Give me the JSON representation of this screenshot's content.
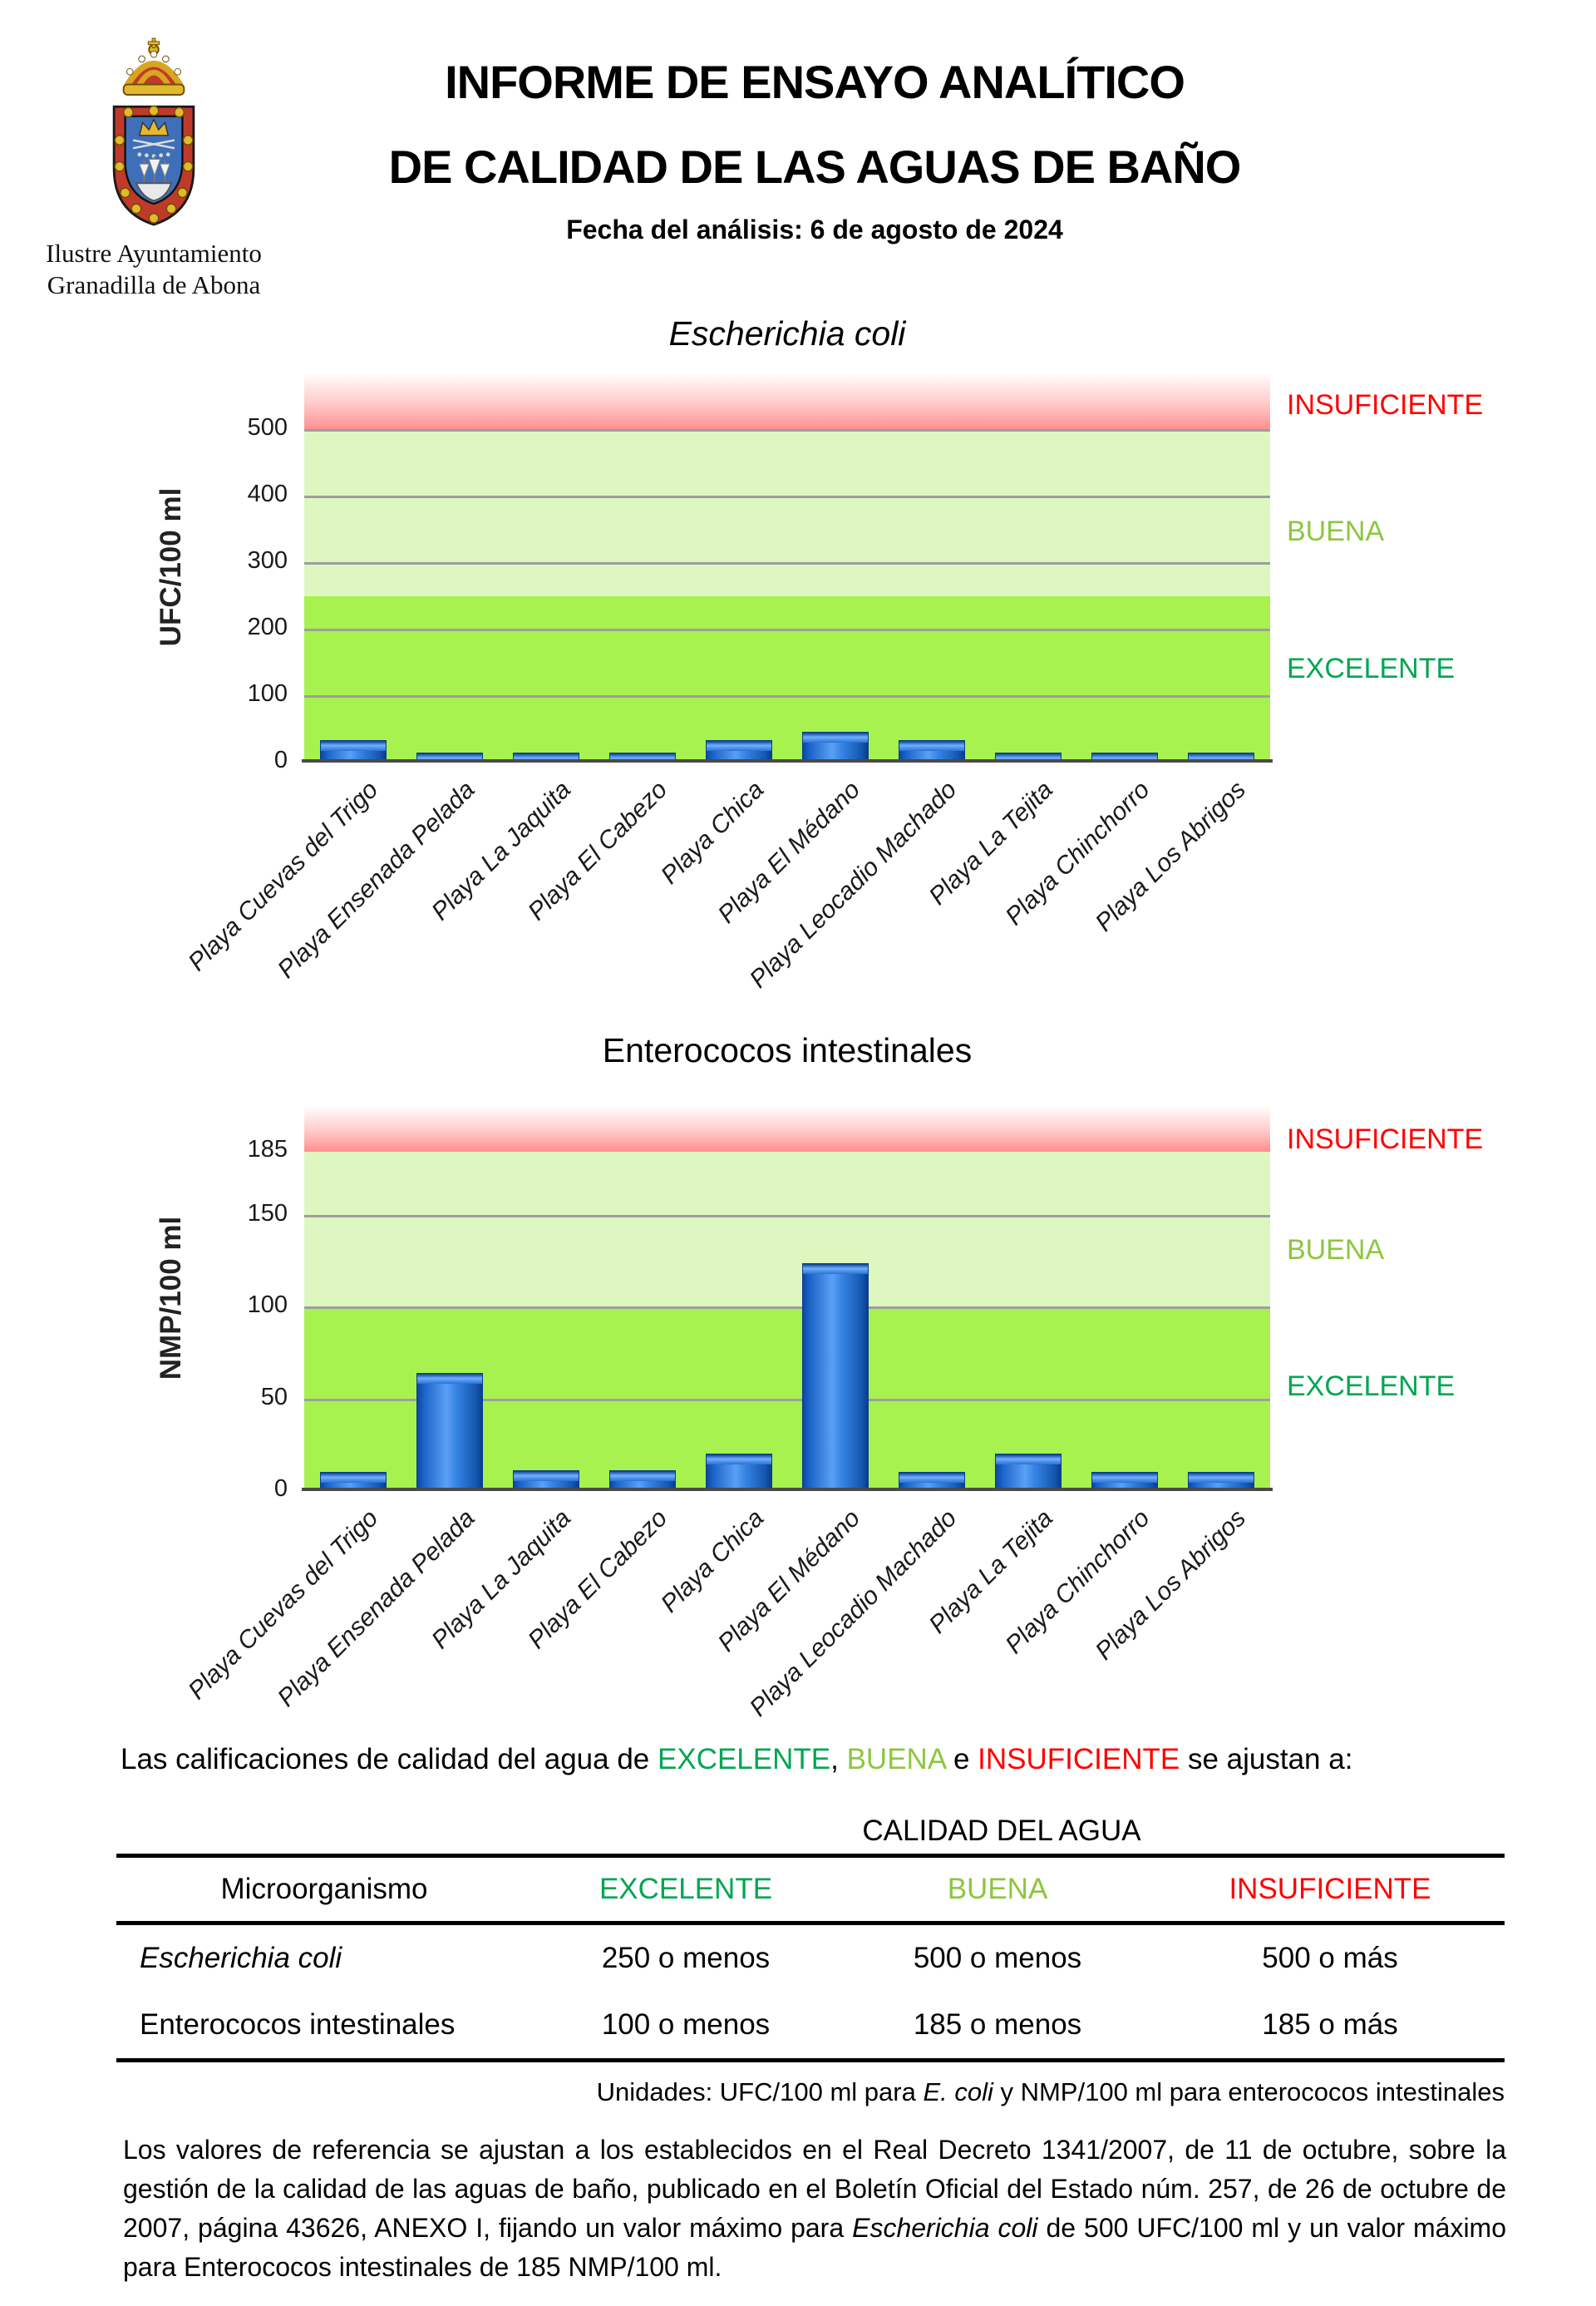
{
  "header": {
    "org_line1": "Ilustre Ayuntamiento",
    "org_line2": "Granadilla de Abona",
    "title_line1": "INFORME DE ENSAYO ANALÍTICO",
    "title_line2": "DE CALIDAD DE LAS AGUAS DE BAÑO",
    "subtitle": "Fecha del análisis: 6 de agosto de 2024"
  },
  "quality_labels": {
    "insuficiente": "INSUFICIENTE",
    "buena": "BUENA",
    "excelente": "EXCELENTE"
  },
  "colors": {
    "excelente_text": "#00A651",
    "buena_text": "#8DC63F",
    "insuficiente_text": "#FF0000",
    "zone_excelente_bg": "#A7F24E",
    "zone_buena_bg": "#DEF7C0",
    "zone_insuficiente_top": "#FF8E8E",
    "bar_fill": "#2E7CE0",
    "gridline": "#9E9E9E"
  },
  "chart_data": [
    {
      "type": "bar",
      "title": "Escherichia coli",
      "title_italic": true,
      "ylabel": "UFC/100 ml",
      "xlabel": "",
      "categories": [
        "Playa Cuevas del Trigo",
        "Playa Ensenada Pelada",
        "Playa La Jaquita",
        "Playa El Cabezo",
        "Playa Chica",
        "Playa El Médano",
        "Playa Leocadio Machado",
        "Playa La Tejita",
        "Playa Chinchorro",
        "Playa Los Abrigos"
      ],
      "values": [
        28,
        9,
        9,
        9,
        28,
        40,
        28,
        9,
        9,
        9
      ],
      "yticks": [
        0,
        100,
        200,
        300,
        400,
        500
      ],
      "ylim": [
        0,
        585
      ],
      "grid": true,
      "zones": {
        "excelente_max": 250,
        "buena_max": 500
      },
      "zone_labels": [
        "INSUFICIENTE",
        "BUENA",
        "EXCELENTE"
      ]
    },
    {
      "type": "bar",
      "title": "Enterococos intestinales",
      "title_italic": false,
      "ylabel": "NMP/100 ml",
      "xlabel": "",
      "categories": [
        "Playa Cuevas del Trigo",
        "Playa Ensenada Pelada",
        "Playa La Jaquita",
        "Playa El Cabezo",
        "Playa Chica",
        "Playa El Médano",
        "Playa Leocadio Machado",
        "Playa La Tejita",
        "Playa Chinchorro",
        "Playa Los Abrigos"
      ],
      "values": [
        8,
        62,
        9,
        9,
        18,
        122,
        8,
        18,
        8,
        8
      ],
      "yticks": [
        0,
        50,
        100,
        150,
        185
      ],
      "ylim": [
        0,
        210
      ],
      "grid": true,
      "zones": {
        "excelente_max": 100,
        "buena_max": 185
      },
      "zone_labels": [
        "INSUFICIENTE",
        "BUENA",
        "EXCELENTE"
      ]
    }
  ],
  "intro": {
    "part1": "Las calificaciones de calidad del agua de ",
    "word_excelente": "EXCELENTE",
    "sep1": ", ",
    "word_buena": "BUENA",
    "sep2": " e ",
    "word_insuficiente": "INSUFICIENTE",
    "part2": " se ajustan a:"
  },
  "table": {
    "caption": "CALIDAD DEL AGUA",
    "headers": [
      "Microorganismo",
      "EXCELENTE",
      "BUENA",
      "INSUFICIENTE"
    ],
    "rows": [
      {
        "name": "Escherichia coli",
        "excelente": "250 o menos",
        "buena": "500 o menos",
        "insuficiente": "500 o más"
      },
      {
        "name": "Enterococos intestinales",
        "excelente": "100 o menos",
        "buena": "185 o menos",
        "insuficiente": "185 o más"
      }
    ]
  },
  "units_note": {
    "part1": "Unidades: UFC/100 ml para ",
    "italic": "E. coli",
    "part2": " y NMP/100 ml para enterococos intestinales"
  },
  "footer": {
    "part1": "Los valores de referencia se ajustan a los establecidos en el Real Decreto 1341/2007, de 11 de octubre, sobre la gestión de la calidad de las aguas de baño, publicado en el Boletín Oficial del Estado núm. 257, de 26 de octubre de 2007, página 43626, ANEXO I, fijando un valor máximo para ",
    "italic": "Escherichia coli",
    "part2": " de 500 UFC/100 ml y un valor máximo para Enterococos intestinales de 185 NMP/100 ml."
  }
}
